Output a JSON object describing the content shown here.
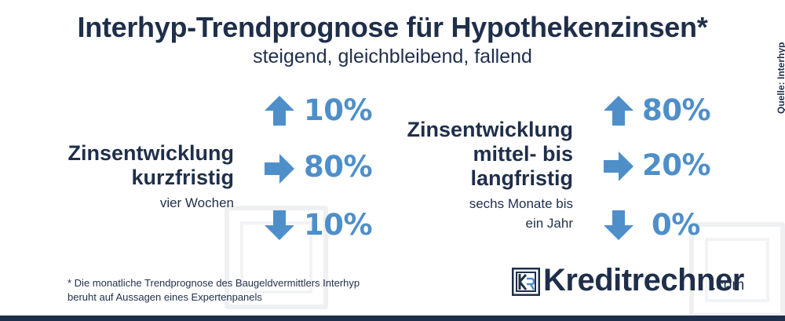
{
  "header": {
    "title": "Interhyp-Trendprognose für Hypothekenzinsen*",
    "subtitle": "steigend, gleichbleibend, fallend"
  },
  "short_term": {
    "heading_line1": "Zinsentwicklung",
    "heading_line2": "kurzfristig",
    "subtitle": "vier Wochen",
    "rising_pct": "10%",
    "unchanged_pct": "80%",
    "falling_pct": "10%"
  },
  "long_term": {
    "heading_line1": "Zinsentwicklung",
    "heading_line2": "mittel- bis",
    "heading_line3": "langfristig",
    "subtitle_line1": "sechs Monate bis",
    "subtitle_line2": "ein Jahr",
    "rising_pct": "80%",
    "unchanged_pct": "20%",
    "falling_pct": "0%"
  },
  "footnote": {
    "line1": "* Die monatliche Trendprognose des Baugeldvermittlers Interhyp",
    "line2": "beruht auf Aussagen eines Expertenpanels"
  },
  "brand": {
    "name": "Kreditrechner",
    "suffix": ".com"
  },
  "source": "Quelle: Interhyp",
  "colors": {
    "accent_blue": "#4f8fc9",
    "navy": "#1f2f4a"
  },
  "icons": [
    "arrow-up-icon",
    "arrow-right-icon",
    "arrow-down-icon",
    "kreditrechner-logo-icon"
  ]
}
